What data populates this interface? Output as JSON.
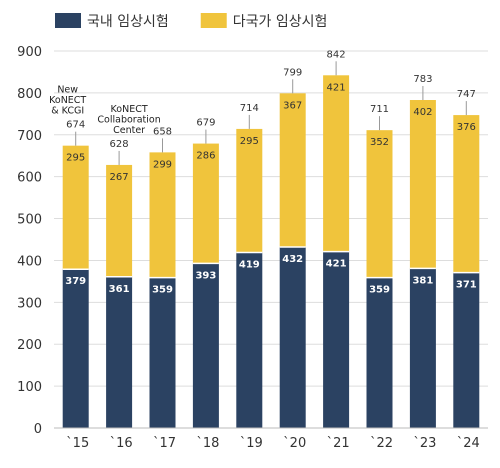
{
  "chart_data": {
    "type": "bar",
    "stacked": true,
    "categories": [
      "`15",
      "`16",
      "`17",
      "`18",
      "`19",
      "`20",
      "`21",
      "`22",
      "`23",
      "`24"
    ],
    "series": [
      {
        "name": "국내 임상시험",
        "values": [
          379,
          361,
          359,
          393,
          419,
          432,
          421,
          359,
          381,
          371
        ],
        "color": "#2b4262"
      },
      {
        "name": "다국가 임상시험",
        "values": [
          295,
          267,
          299,
          286,
          295,
          367,
          421,
          352,
          402,
          376
        ],
        "color": "#f0c43c"
      }
    ],
    "totals": [
      674,
      628,
      658,
      679,
      714,
      799,
      842,
      711,
      783,
      747
    ],
    "ylim": [
      0,
      900
    ],
    "yticks": [
      0,
      100,
      200,
      300,
      400,
      500,
      600,
      700,
      800,
      900
    ],
    "grid": true,
    "legend_position": "top-left",
    "annotations": [
      {
        "category": "`15",
        "lines": [
          "New",
          "KoNECT",
          "& KCGI"
        ]
      },
      {
        "category": "`16",
        "lines": [
          "KoNECT",
          "Collaboration",
          "Center"
        ]
      }
    ]
  }
}
